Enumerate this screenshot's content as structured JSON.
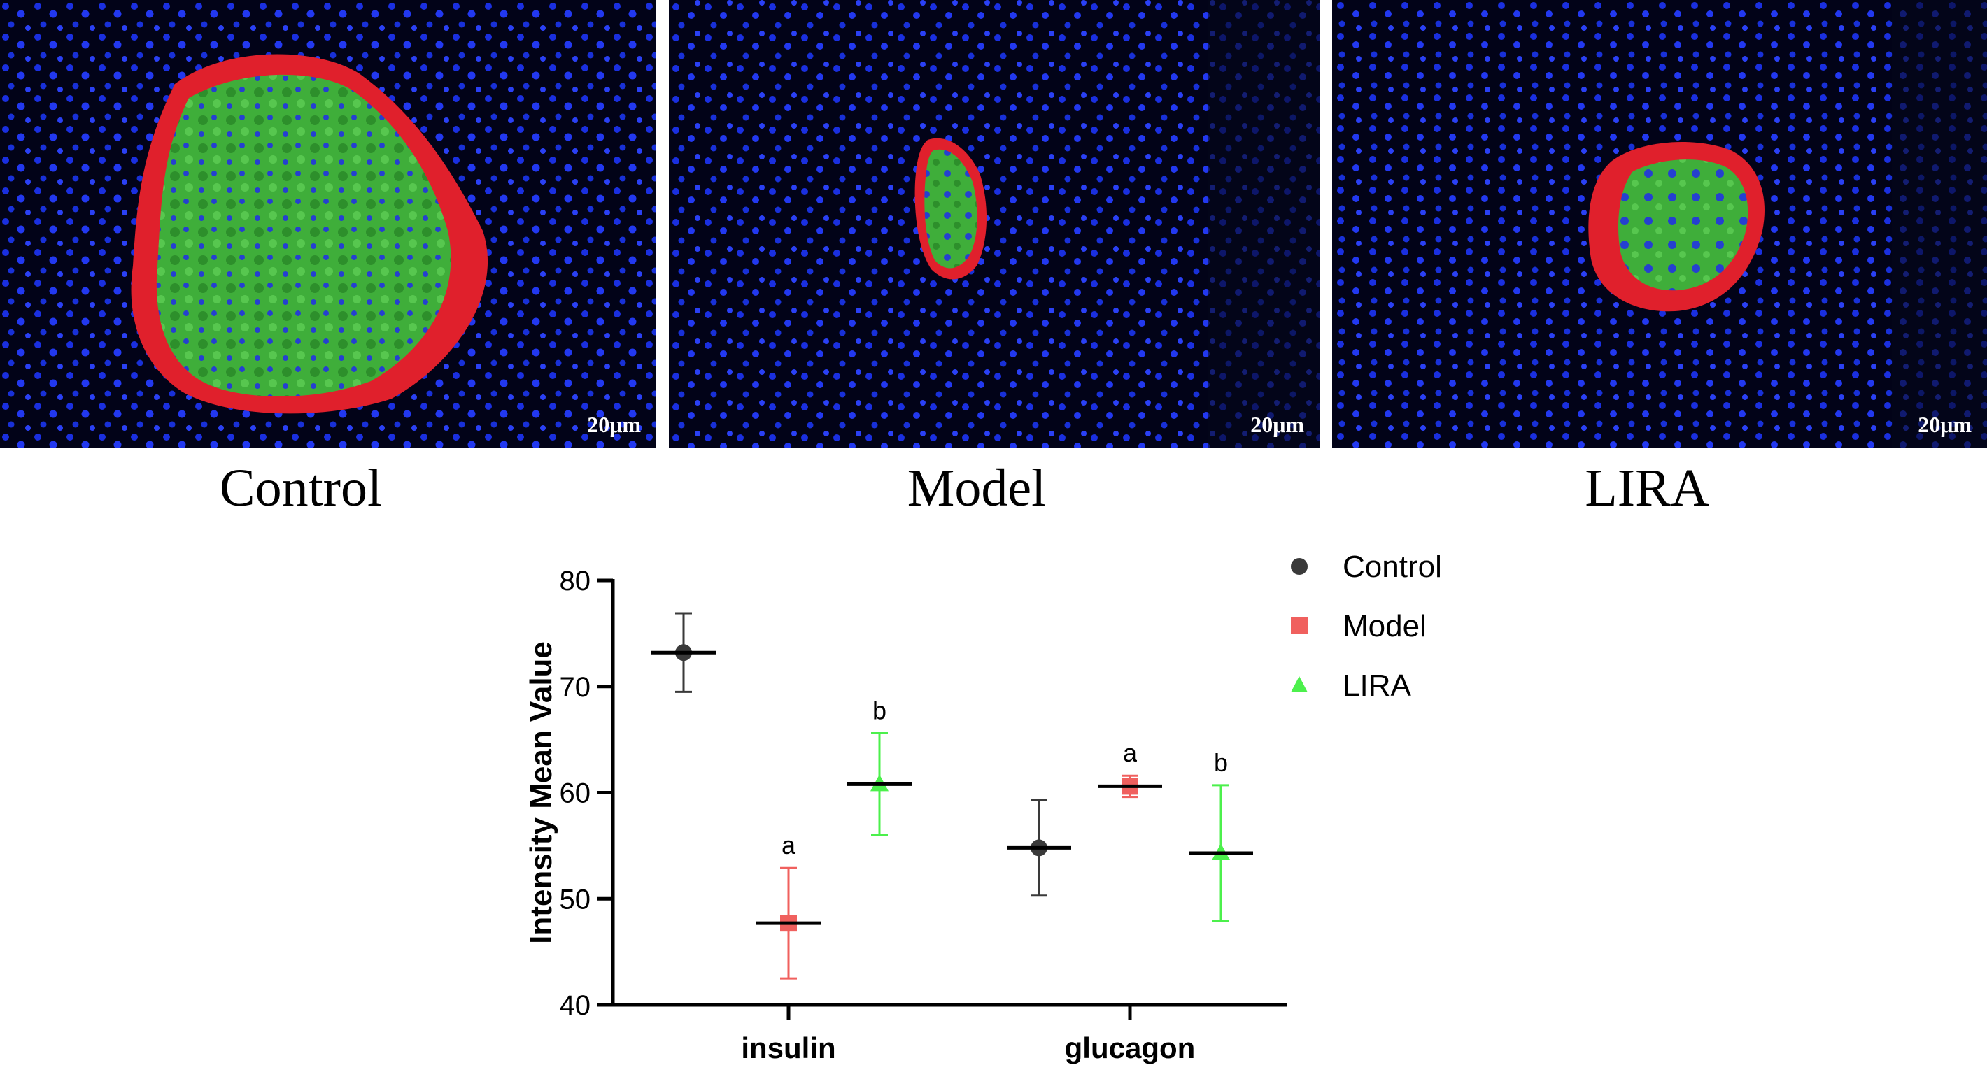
{
  "panels": [
    {
      "label": "Control",
      "scale": "20μm"
    },
    {
      "label": "Model",
      "scale": "20μm"
    },
    {
      "label": "LIRA",
      "scale": "20μm"
    }
  ],
  "chart_data": {
    "type": "scatter",
    "title": "",
    "xlabel": "",
    "ylabel": "Intensity Mean Value",
    "ylim": [
      40,
      80
    ],
    "yticks": [
      "40",
      "50",
      "60",
      "70",
      "80"
    ],
    "categories": [
      "insulin",
      "glucagon"
    ],
    "legend_position": "top-right",
    "series": [
      {
        "name": "Control",
        "color": "#3a3a3a",
        "marker": "circle",
        "values": [
          73.2,
          54.8
        ],
        "errors": [
          3.7,
          4.5
        ],
        "annotations": [
          "",
          ""
        ]
      },
      {
        "name": "Model",
        "color": "#f0605e",
        "marker": "square",
        "values": [
          47.7,
          60.6
        ],
        "errors": [
          5.2,
          1.0
        ],
        "annotations": [
          "a",
          "a"
        ]
      },
      {
        "name": "LIRA",
        "color": "#4cf04c",
        "marker": "triangle",
        "values": [
          60.8,
          54.3
        ],
        "errors": [
          4.8,
          6.4
        ],
        "annotations": [
          "b",
          "b"
        ]
      }
    ]
  }
}
